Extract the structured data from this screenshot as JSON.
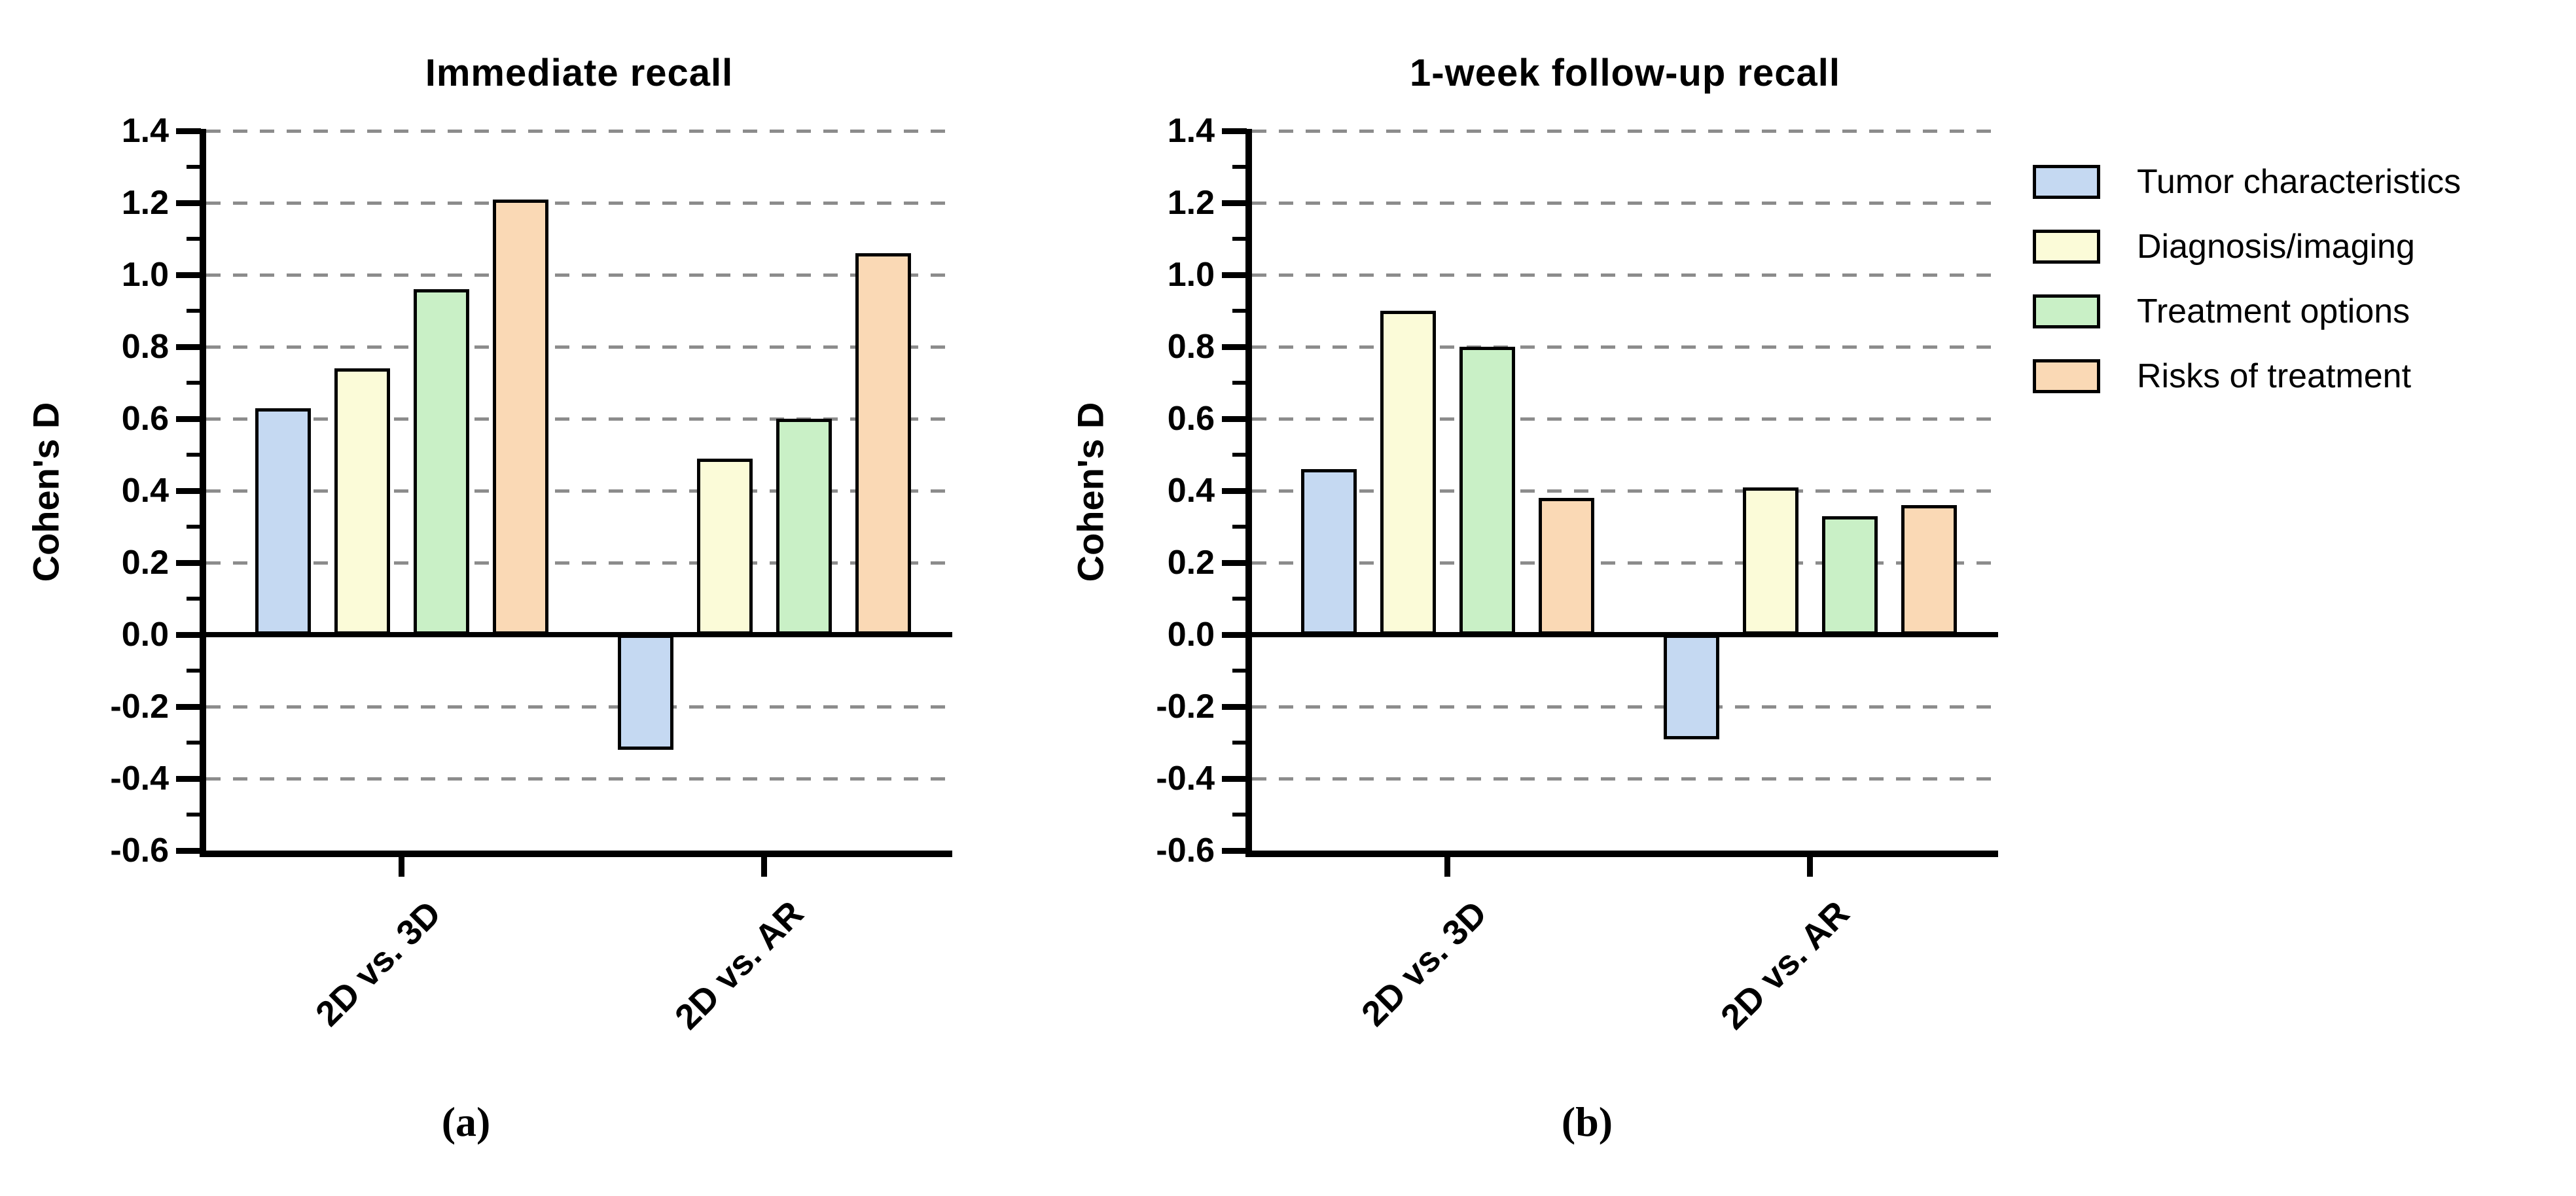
{
  "figure": {
    "background": "#ffffff",
    "axis_color": "#000000",
    "gridline_color": "#8c8c8c"
  },
  "chart_data": [
    {
      "type": "bar",
      "title": "Immediate recall",
      "panel_label": "(a)",
      "xlabel": "",
      "ylabel": "Cohen's D",
      "ylim": [
        -0.6,
        1.4
      ],
      "ytick_labels": [
        "1.4",
        "1.2",
        "1.0",
        "0.8",
        "0.6",
        "0.4",
        "0.2",
        "0.0",
        "-0.2",
        "-0.4",
        "-0.6"
      ],
      "grid": "horizontal dashed every 0.2, none at 0.0 and -0.6",
      "legend_position": "right of panel (b)",
      "categories": [
        "2D vs. 3D",
        "2D vs. AR"
      ],
      "series": [
        {
          "name": "Tumor characteristics",
          "color": "#C5D9F2",
          "values": [
            0.63,
            -0.32
          ]
        },
        {
          "name": "Diagnosis/imaging",
          "color": "#FBFBD8",
          "values": [
            0.74,
            0.49
          ]
        },
        {
          "name": "Treatment options",
          "color": "#C9F0C6",
          "values": [
            0.96,
            0.6
          ]
        },
        {
          "name": "Risks of treatment",
          "color": "#FAD9B5",
          "values": [
            1.21,
            1.06
          ]
        }
      ]
    },
    {
      "type": "bar",
      "title": "1-week follow-up recall",
      "panel_label": "(b)",
      "xlabel": "",
      "ylabel": "Cohen's D",
      "ylim": [
        -0.6,
        1.4
      ],
      "ytick_labels": [
        "1.4",
        "1.2",
        "1.0",
        "0.8",
        "0.6",
        "0.4",
        "0.2",
        "0.0",
        "-0.2",
        "-0.4",
        "-0.6"
      ],
      "grid": "horizontal dashed every 0.2, none at 0.0 and -0.6",
      "legend_position": "right of panel (b)",
      "categories": [
        "2D vs. 3D",
        "2D vs. AR"
      ],
      "series": [
        {
          "name": "Tumor characteristics",
          "color": "#C5D9F2",
          "values": [
            0.46,
            -0.29
          ]
        },
        {
          "name": "Diagnosis/imaging",
          "color": "#FBFBD8",
          "values": [
            0.9,
            0.41
          ]
        },
        {
          "name": "Treatment options",
          "color": "#C9F0C6",
          "values": [
            0.8,
            0.33
          ]
        },
        {
          "name": "Risks of treatment",
          "color": "#FAD9B5",
          "values": [
            0.38,
            0.36
          ]
        }
      ]
    }
  ]
}
